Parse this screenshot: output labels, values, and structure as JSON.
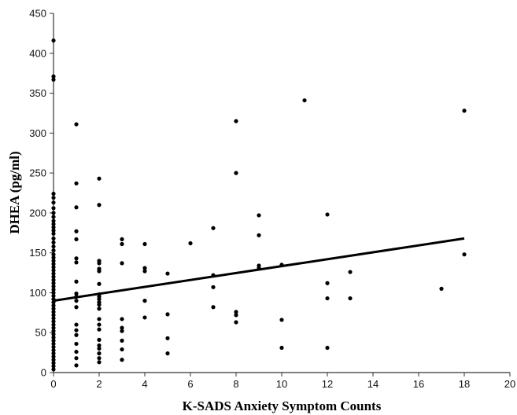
{
  "chart_data": {
    "type": "scatter",
    "xlabel": "K-SADS Anxiety Symptom Counts",
    "ylabel": "DHEA (pg/ml)",
    "xlim": [
      0,
      20
    ],
    "ylim": [
      0,
      450
    ],
    "xticks": [
      0,
      2,
      4,
      6,
      8,
      10,
      12,
      14,
      16,
      18,
      20
    ],
    "yticks": [
      0,
      50,
      100,
      150,
      200,
      250,
      300,
      350,
      400,
      450
    ],
    "grid": false,
    "legend": "none",
    "point_color": "#000000",
    "trendline": {
      "x": [
        0,
        18
      ],
      "y": [
        90,
        168
      ]
    },
    "points": [
      [
        0,
        416
      ],
      [
        0,
        371
      ],
      [
        0,
        367
      ],
      [
        0,
        224
      ],
      [
        0,
        219
      ],
      [
        0,
        213
      ],
      [
        0,
        206
      ],
      [
        0,
        200
      ],
      [
        0,
        195
      ],
      [
        0,
        190
      ],
      [
        0,
        186
      ],
      [
        0,
        182
      ],
      [
        0,
        178
      ],
      [
        0,
        174
      ],
      [
        0,
        168
      ],
      [
        0,
        163
      ],
      [
        0,
        158
      ],
      [
        0,
        153
      ],
      [
        0,
        148
      ],
      [
        0,
        144
      ],
      [
        0,
        140
      ],
      [
        0,
        136
      ],
      [
        0,
        132
      ],
      [
        0,
        128
      ],
      [
        0,
        124
      ],
      [
        0,
        120
      ],
      [
        0,
        116
      ],
      [
        0,
        112
      ],
      [
        0,
        108
      ],
      [
        0,
        104
      ],
      [
        0,
        100
      ],
      [
        0,
        96
      ],
      [
        0,
        92
      ],
      [
        0,
        88
      ],
      [
        0,
        84
      ],
      [
        0,
        80
      ],
      [
        0,
        76
      ],
      [
        0,
        72
      ],
      [
        0,
        68
      ],
      [
        0,
        64
      ],
      [
        0,
        60
      ],
      [
        0,
        56
      ],
      [
        0,
        52
      ],
      [
        0,
        48
      ],
      [
        0,
        44
      ],
      [
        0,
        40
      ],
      [
        0,
        36
      ],
      [
        0,
        32
      ],
      [
        0,
        28
      ],
      [
        0,
        24
      ],
      [
        0,
        20
      ],
      [
        0,
        16
      ],
      [
        0,
        12
      ],
      [
        0,
        8
      ],
      [
        0,
        4
      ],
      [
        1,
        311
      ],
      [
        1,
        237
      ],
      [
        1,
        207
      ],
      [
        1,
        177
      ],
      [
        1,
        167
      ],
      [
        1,
        143
      ],
      [
        1,
        138
      ],
      [
        1,
        114
      ],
      [
        1,
        99
      ],
      [
        1,
        95
      ],
      [
        1,
        90
      ],
      [
        1,
        82
      ],
      [
        1,
        60
      ],
      [
        1,
        53
      ],
      [
        1,
        47
      ],
      [
        1,
        36
      ],
      [
        1,
        26
      ],
      [
        1,
        18
      ],
      [
        1,
        9
      ],
      [
        2,
        243
      ],
      [
        2,
        210
      ],
      [
        2,
        140
      ],
      [
        2,
        137
      ],
      [
        2,
        130
      ],
      [
        2,
        127
      ],
      [
        2,
        111
      ],
      [
        2,
        98
      ],
      [
        2,
        95
      ],
      [
        2,
        92
      ],
      [
        2,
        88
      ],
      [
        2,
        85
      ],
      [
        2,
        80
      ],
      [
        2,
        67
      ],
      [
        2,
        60
      ],
      [
        2,
        54
      ],
      [
        2,
        41
      ],
      [
        2,
        34
      ],
      [
        2,
        30
      ],
      [
        2,
        24
      ],
      [
        2,
        18
      ],
      [
        2,
        13
      ],
      [
        3,
        167
      ],
      [
        3,
        161
      ],
      [
        3,
        137
      ],
      [
        3,
        67
      ],
      [
        3,
        56
      ],
      [
        3,
        52
      ],
      [
        3,
        40
      ],
      [
        3,
        29
      ],
      [
        3,
        16
      ],
      [
        4,
        161
      ],
      [
        4,
        131
      ],
      [
        4,
        127
      ],
      [
        4,
        90
      ],
      [
        4,
        69
      ],
      [
        5,
        124
      ],
      [
        5,
        73
      ],
      [
        5,
        43
      ],
      [
        5,
        24
      ],
      [
        6,
        162
      ],
      [
        7,
        181
      ],
      [
        7,
        122
      ],
      [
        7,
        107
      ],
      [
        7,
        82
      ],
      [
        8,
        315
      ],
      [
        8,
        250
      ],
      [
        8,
        76
      ],
      [
        8,
        72
      ],
      [
        8,
        63
      ],
      [
        9,
        197
      ],
      [
        9,
        172
      ],
      [
        9,
        134
      ],
      [
        9,
        131
      ],
      [
        10,
        135
      ],
      [
        10,
        66
      ],
      [
        10,
        31
      ],
      [
        11,
        341
      ],
      [
        12,
        198
      ],
      [
        12,
        112
      ],
      [
        12,
        93
      ],
      [
        12,
        31
      ],
      [
        13,
        126
      ],
      [
        13,
        93
      ],
      [
        17,
        105
      ],
      [
        18,
        328
      ],
      [
        18,
        148
      ]
    ]
  }
}
